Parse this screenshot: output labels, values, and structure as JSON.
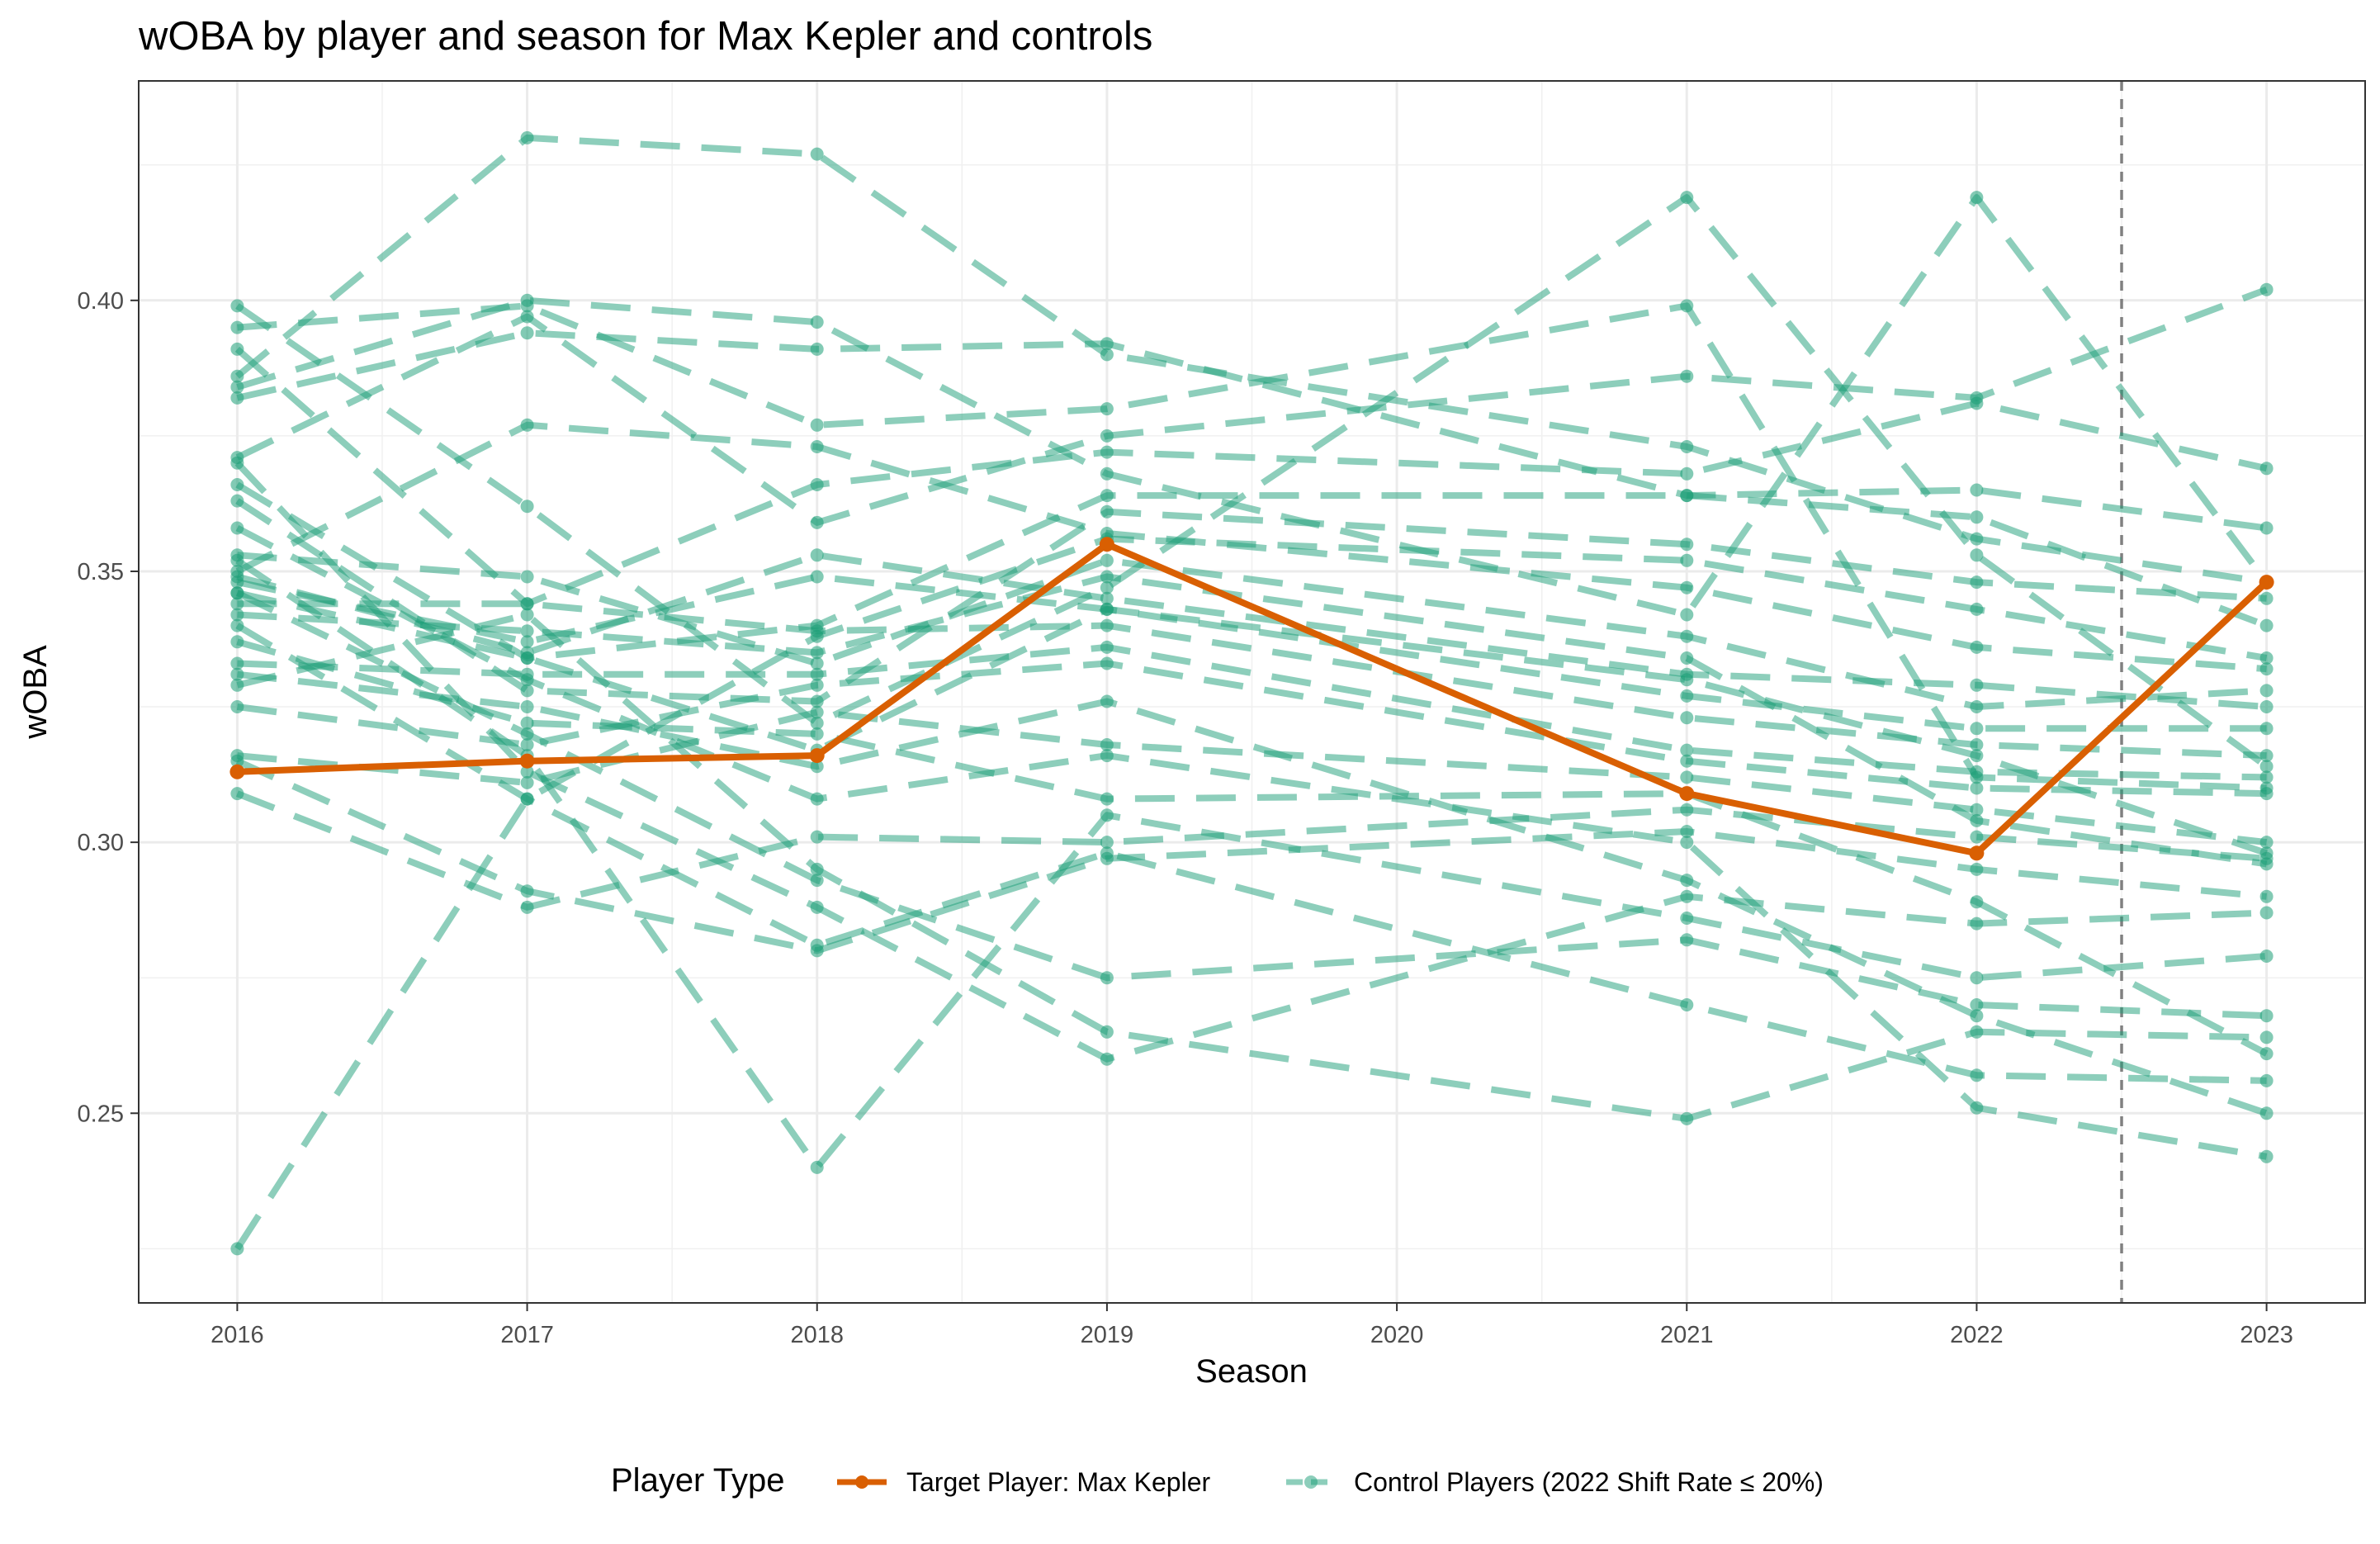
{
  "chart_data": {
    "type": "line",
    "title": "wOBA by player and season for Max Kepler and controls",
    "xlabel": "Season",
    "ylabel": "wOBA",
    "x_ticks": [
      2016,
      2017,
      2018,
      2019,
      2020,
      2021,
      2022,
      2023
    ],
    "y_ticks": [
      0.25,
      0.3,
      0.35,
      0.4
    ],
    "y_tick_labels": [
      "0.25",
      "0.30",
      "0.35",
      "0.40"
    ],
    "xlim": [
      2015.66,
      2023.34
    ],
    "ylim": [
      0.215,
      0.4405
    ],
    "grid": true,
    "vline": {
      "x": 2022.5,
      "style": "dashed",
      "color": "#808080"
    },
    "legend": {
      "position": "bottom",
      "title": "Player Type",
      "entries": [
        {
          "label": "Target Player: Max Kepler",
          "color": "#D95F02",
          "style": "solid"
        },
        {
          "label": "Control Players (2022 Shift Rate ≤ 20%)",
          "color": "#1B9E77",
          "style": "dashed"
        }
      ]
    },
    "target_series": {
      "color": "#D95F02",
      "points": [
        [
          2016,
          0.313
        ],
        [
          2017,
          0.315
        ],
        [
          2018,
          0.316
        ],
        [
          2019,
          0.355
        ],
        [
          2021,
          0.309
        ],
        [
          2022,
          0.298
        ],
        [
          2023,
          0.348
        ]
      ]
    },
    "control_series": {
      "color": "#1B9E77",
      "players": [
        [
          [
            2016,
            0.225
          ],
          [
            2017,
            0.308
          ],
          [
            2018,
            0.338
          ],
          [
            2019,
            0.356
          ],
          [
            2021,
            0.352
          ],
          [
            2022,
            0.343
          ],
          [
            2023,
            0.334
          ]
        ],
        [
          [
            2016,
            0.386
          ],
          [
            2017,
            0.43
          ],
          [
            2018,
            0.427
          ],
          [
            2019,
            0.39
          ],
          [
            2021,
            0.373
          ],
          [
            2022,
            0.356
          ],
          [
            2023,
            0.348
          ]
        ],
        [
          [
            2016,
            0.384
          ],
          [
            2017,
            0.4
          ],
          [
            2018,
            0.396
          ],
          [
            2019,
            0.368
          ],
          [
            2021,
            0.342
          ],
          [
            2022,
            0.419
          ],
          [
            2023,
            0.348
          ]
        ],
        [
          [
            2016,
            0.399
          ],
          [
            2017,
            0.362
          ],
          [
            2018,
            0.322
          ],
          [
            2019,
            0.347
          ],
          [
            2021,
            0.419
          ],
          [
            2022,
            0.353
          ],
          [
            2023,
            0.314
          ]
        ],
        [
          [
            2016,
            0.382
          ],
          [
            2017,
            0.394
          ],
          [
            2018,
            0.391
          ],
          [
            2019,
            0.392
          ],
          [
            2021,
            0.364
          ],
          [
            2022,
            0.365
          ],
          [
            2023,
            0.358
          ]
        ],
        [
          [
            2016,
            0.395
          ],
          [
            2017,
            0.399
          ],
          [
            2018,
            0.377
          ],
          [
            2019,
            0.38
          ],
          [
            2021,
            0.399
          ],
          [
            2022,
            0.312
          ],
          [
            2023,
            0.31
          ]
        ],
        [
          [
            2016,
            0.371
          ],
          [
            2017,
            0.397
          ],
          [
            2018,
            0.359
          ],
          [
            2019,
            0.375
          ],
          [
            2021,
            0.386
          ],
          [
            2022,
            0.382
          ],
          [
            2023,
            0.402
          ]
        ],
        [
          [
            2016,
            0.391
          ],
          [
            2017,
            0.344
          ],
          [
            2018,
            0.366
          ],
          [
            2019,
            0.372
          ],
          [
            2021,
            0.368
          ],
          [
            2022,
            0.381
          ],
          [
            2023,
            0.369
          ]
        ],
        [
          [
            2016,
            0.366
          ],
          [
            2017,
            0.334
          ],
          [
            2018,
            0.34
          ],
          [
            2019,
            0.364
          ],
          [
            2021,
            0.364
          ],
          [
            2022,
            0.36
          ],
          [
            2023,
            0.34
          ]
        ],
        [
          [
            2016,
            0.363
          ],
          [
            2017,
            0.328
          ],
          [
            2018,
            0.326
          ],
          [
            2019,
            0.361
          ],
          [
            2021,
            0.355
          ],
          [
            2022,
            0.348
          ],
          [
            2023,
            0.345
          ]
        ],
        [
          [
            2016,
            0.35
          ],
          [
            2017,
            0.377
          ],
          [
            2018,
            0.373
          ],
          [
            2019,
            0.357
          ],
          [
            2021,
            0.347
          ],
          [
            2022,
            0.336
          ],
          [
            2023,
            0.332
          ]
        ],
        [
          [
            2016,
            0.353
          ],
          [
            2017,
            0.349
          ],
          [
            2018,
            0.333
          ],
          [
            2019,
            0.352
          ],
          [
            2021,
            0.338
          ],
          [
            2022,
            0.325
          ],
          [
            2023,
            0.328
          ]
        ],
        [
          [
            2016,
            0.349
          ],
          [
            2017,
            0.335
          ],
          [
            2018,
            0.353
          ],
          [
            2019,
            0.345
          ],
          [
            2021,
            0.331
          ],
          [
            2022,
            0.329
          ],
          [
            2023,
            0.325
          ]
        ],
        [
          [
            2016,
            0.348
          ],
          [
            2017,
            0.337
          ],
          [
            2018,
            0.349
          ],
          [
            2019,
            0.343
          ],
          [
            2021,
            0.327
          ],
          [
            2022,
            0.321
          ],
          [
            2023,
            0.321
          ]
        ],
        [
          [
            2016,
            0.344
          ],
          [
            2017,
            0.344
          ],
          [
            2018,
            0.339
          ],
          [
            2019,
            0.34
          ],
          [
            2021,
            0.323
          ],
          [
            2022,
            0.318
          ],
          [
            2023,
            0.316
          ]
        ],
        [
          [
            2016,
            0.333
          ],
          [
            2017,
            0.331
          ],
          [
            2018,
            0.331
          ],
          [
            2019,
            0.336
          ],
          [
            2021,
            0.317
          ],
          [
            2022,
            0.313
          ],
          [
            2023,
            0.312
          ]
        ],
        [
          [
            2016,
            0.325
          ],
          [
            2017,
            0.318
          ],
          [
            2018,
            0.329
          ],
          [
            2019,
            0.333
          ],
          [
            2021,
            0.315
          ],
          [
            2022,
            0.31
          ],
          [
            2023,
            0.309
          ]
        ],
        [
          [
            2016,
            0.316
          ],
          [
            2017,
            0.311
          ],
          [
            2018,
            0.324
          ],
          [
            2019,
            0.318
          ],
          [
            2021,
            0.312
          ],
          [
            2022,
            0.306
          ],
          [
            2023,
            0.3
          ]
        ],
        [
          [
            2016,
            0.309
          ],
          [
            2017,
            0.288
          ],
          [
            2018,
            0.301
          ],
          [
            2019,
            0.3
          ],
          [
            2021,
            0.306
          ],
          [
            2022,
            0.301
          ],
          [
            2023,
            0.297
          ]
        ],
        [
          [
            2016,
            0.315
          ],
          [
            2017,
            0.291
          ],
          [
            2018,
            0.28
          ],
          [
            2019,
            0.297
          ],
          [
            2021,
            0.302
          ],
          [
            2022,
            0.295
          ],
          [
            2023,
            0.29
          ]
        ],
        [
          [
            2016,
            0.37
          ],
          [
            2017,
            0.313
          ],
          [
            2018,
            0.288
          ],
          [
            2019,
            0.26
          ],
          [
            2021,
            0.29
          ],
          [
            2022,
            0.285
          ],
          [
            2023,
            0.287
          ]
        ],
        [
          [
            2016,
            0.352
          ],
          [
            2017,
            0.316
          ],
          [
            2018,
            0.24
          ],
          [
            2019,
            0.305
          ],
          [
            2021,
            0.286
          ],
          [
            2022,
            0.275
          ],
          [
            2023,
            0.279
          ]
        ],
        [
          [
            2016,
            0.346
          ],
          [
            2017,
            0.32
          ],
          [
            2018,
            0.293
          ],
          [
            2019,
            0.275
          ],
          [
            2021,
            0.282
          ],
          [
            2022,
            0.27
          ],
          [
            2023,
            0.268
          ]
        ],
        [
          [
            2016,
            0.329
          ],
          [
            2017,
            0.342
          ],
          [
            2018,
            0.295
          ],
          [
            2019,
            0.265
          ],
          [
            2021,
            0.249
          ],
          [
            2022,
            0.265
          ],
          [
            2023,
            0.264
          ]
        ],
        [
          [
            2016,
            0.34
          ],
          [
            2017,
            0.308
          ],
          [
            2018,
            0.281
          ],
          [
            2019,
            0.298
          ],
          [
            2021,
            0.27
          ],
          [
            2022,
            0.257
          ],
          [
            2023,
            0.256
          ]
        ],
        [
          [
            2016,
            0.358
          ],
          [
            2017,
            0.33
          ],
          [
            2018,
            0.308
          ],
          [
            2019,
            0.316
          ],
          [
            2021,
            0.3
          ],
          [
            2022,
            0.251
          ],
          [
            2023,
            0.242
          ]
        ],
        [
          [
            2016,
            0.331
          ],
          [
            2017,
            0.325
          ],
          [
            2018,
            0.314
          ],
          [
            2019,
            0.326
          ],
          [
            2021,
            0.293
          ],
          [
            2022,
            0.268
          ],
          [
            2023,
            0.25
          ]
        ],
        [
          [
            2016,
            0.337
          ],
          [
            2017,
            0.322
          ],
          [
            2018,
            0.32
          ],
          [
            2019,
            0.308
          ],
          [
            2021,
            0.309
          ],
          [
            2022,
            0.289
          ],
          [
            2023,
            0.261
          ]
        ],
        [
          [
            2016,
            0.346
          ],
          [
            2017,
            0.334
          ],
          [
            2018,
            0.317
          ],
          [
            2019,
            0.343
          ],
          [
            2021,
            0.33
          ],
          [
            2022,
            0.316
          ],
          [
            2023,
            0.298
          ]
        ],
        [
          [
            2016,
            0.342
          ],
          [
            2017,
            0.339
          ],
          [
            2018,
            0.335
          ],
          [
            2019,
            0.349
          ],
          [
            2021,
            0.334
          ],
          [
            2022,
            0.304
          ],
          [
            2023,
            0.296
          ]
        ]
      ]
    }
  }
}
